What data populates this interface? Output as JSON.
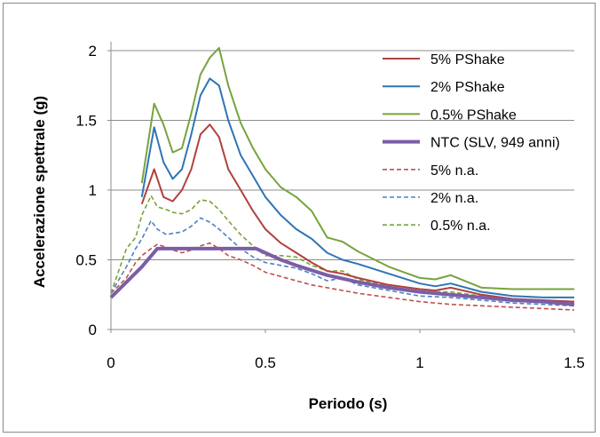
{
  "chart_data": {
    "type": "line",
    "title": "",
    "xlabel": "Periodo (s)",
    "ylabel": "Accelerazione spettrale (g)",
    "xlim": [
      0,
      1.5
    ],
    "ylim": [
      0,
      2
    ],
    "xticks": [
      0,
      0.5,
      1,
      1.5
    ],
    "xtick_labels": [
      "0",
      "0.5",
      "1",
      "1.5"
    ],
    "yticks": [
      0,
      0.5,
      1,
      1.5,
      2
    ],
    "ytick_labels": [
      "0",
      "0.5",
      "1",
      "1.5",
      "2"
    ],
    "grid": "horizontal",
    "legend_position": "right",
    "series": [
      {
        "name": "5% PShake",
        "color": "#b0413e",
        "style": "solid",
        "width": 2,
        "x": [
          0.1,
          0.14,
          0.17,
          0.2,
          0.23,
          0.26,
          0.29,
          0.32,
          0.35,
          0.38,
          0.42,
          0.46,
          0.5,
          0.55,
          0.6,
          0.65,
          0.7,
          0.75,
          0.8,
          0.9,
          1.0,
          1.05,
          1.1,
          1.2,
          1.3,
          1.4,
          1.5
        ],
        "y": [
          0.9,
          1.15,
          0.95,
          0.92,
          1.0,
          1.15,
          1.4,
          1.47,
          1.38,
          1.15,
          1.0,
          0.85,
          0.72,
          0.62,
          0.55,
          0.48,
          0.42,
          0.4,
          0.37,
          0.32,
          0.29,
          0.28,
          0.3,
          0.25,
          0.22,
          0.21,
          0.2
        ]
      },
      {
        "name": "2% PShake",
        "color": "#2e75b6",
        "style": "solid",
        "width": 2,
        "x": [
          0.1,
          0.14,
          0.17,
          0.2,
          0.23,
          0.26,
          0.29,
          0.32,
          0.35,
          0.38,
          0.42,
          0.46,
          0.5,
          0.55,
          0.6,
          0.65,
          0.7,
          0.75,
          0.8,
          0.9,
          1.0,
          1.05,
          1.1,
          1.2,
          1.3,
          1.4,
          1.5
        ],
        "y": [
          0.95,
          1.45,
          1.2,
          1.08,
          1.15,
          1.4,
          1.68,
          1.8,
          1.75,
          1.5,
          1.25,
          1.1,
          0.95,
          0.82,
          0.72,
          0.65,
          0.55,
          0.5,
          0.47,
          0.4,
          0.33,
          0.31,
          0.33,
          0.27,
          0.24,
          0.23,
          0.23
        ]
      },
      {
        "name": "0.5% PShake",
        "color": "#77a33e",
        "style": "solid",
        "width": 2,
        "x": [
          0.1,
          0.14,
          0.17,
          0.2,
          0.23,
          0.26,
          0.29,
          0.32,
          0.35,
          0.38,
          0.42,
          0.46,
          0.5,
          0.55,
          0.6,
          0.65,
          0.7,
          0.75,
          0.8,
          0.9,
          1.0,
          1.05,
          1.1,
          1.2,
          1.3,
          1.4,
          1.5
        ],
        "y": [
          1.05,
          1.62,
          1.47,
          1.27,
          1.3,
          1.55,
          1.83,
          1.95,
          2.02,
          1.75,
          1.48,
          1.3,
          1.15,
          1.02,
          0.95,
          0.85,
          0.66,
          0.63,
          0.56,
          0.45,
          0.37,
          0.36,
          0.39,
          0.3,
          0.29,
          0.29,
          0.29
        ]
      },
      {
        "name": "NTC (SLV, 949 anni)",
        "color": "#7b5ea7",
        "style": "solid",
        "width": 4,
        "x": [
          0,
          0.1,
          0.15,
          0.2,
          0.3,
          0.4,
          0.47,
          0.55,
          0.6,
          0.7,
          0.8,
          0.9,
          1.0,
          1.1,
          1.2,
          1.3,
          1.4,
          1.5
        ],
        "y": [
          0.23,
          0.45,
          0.58,
          0.58,
          0.58,
          0.58,
          0.58,
          0.5,
          0.46,
          0.39,
          0.34,
          0.3,
          0.27,
          0.25,
          0.23,
          0.21,
          0.2,
          0.18
        ]
      },
      {
        "name": "5% n.a.",
        "color": "#c0504d",
        "style": "dashed",
        "width": 1.6,
        "x": [
          0,
          0.05,
          0.08,
          0.1,
          0.13,
          0.15,
          0.18,
          0.2,
          0.23,
          0.26,
          0.29,
          0.32,
          0.35,
          0.38,
          0.42,
          0.46,
          0.5,
          0.55,
          0.6,
          0.65,
          0.7,
          0.75,
          0.8,
          0.9,
          1.0,
          1.1,
          1.2,
          1.3,
          1.4,
          1.5
        ],
        "y": [
          0.26,
          0.37,
          0.48,
          0.53,
          0.58,
          0.61,
          0.59,
          0.57,
          0.55,
          0.57,
          0.6,
          0.62,
          0.58,
          0.53,
          0.5,
          0.46,
          0.41,
          0.38,
          0.35,
          0.32,
          0.3,
          0.28,
          0.26,
          0.23,
          0.2,
          0.18,
          0.17,
          0.16,
          0.15,
          0.14
        ]
      },
      {
        "name": "2% n.a.",
        "color": "#4f81bd",
        "style": "dashed",
        "width": 1.6,
        "x": [
          0,
          0.05,
          0.08,
          0.1,
          0.13,
          0.15,
          0.18,
          0.2,
          0.23,
          0.26,
          0.29,
          0.32,
          0.35,
          0.38,
          0.42,
          0.46,
          0.5,
          0.55,
          0.6,
          0.65,
          0.7,
          0.75,
          0.8,
          0.9,
          1.0,
          1.1,
          1.2,
          1.3,
          1.4,
          1.5
        ],
        "y": [
          0.26,
          0.45,
          0.58,
          0.65,
          0.78,
          0.72,
          0.68,
          0.69,
          0.7,
          0.74,
          0.8,
          0.77,
          0.72,
          0.66,
          0.58,
          0.52,
          0.48,
          0.46,
          0.44,
          0.4,
          0.35,
          0.37,
          0.32,
          0.28,
          0.24,
          0.23,
          0.21,
          0.19,
          0.18,
          0.17
        ]
      },
      {
        "name": "0.5% n.a.",
        "color": "#7aa33a",
        "style": "dashed",
        "width": 1.6,
        "x": [
          0,
          0.05,
          0.08,
          0.1,
          0.13,
          0.15,
          0.18,
          0.2,
          0.23,
          0.26,
          0.29,
          0.32,
          0.35,
          0.38,
          0.42,
          0.46,
          0.5,
          0.55,
          0.6,
          0.65,
          0.7,
          0.75,
          0.8,
          0.9,
          1.0,
          1.1,
          1.2,
          1.3,
          1.4,
          1.5
        ],
        "y": [
          0.26,
          0.58,
          0.66,
          0.82,
          0.96,
          0.88,
          0.86,
          0.84,
          0.83,
          0.86,
          0.93,
          0.92,
          0.86,
          0.78,
          0.68,
          0.6,
          0.53,
          0.53,
          0.52,
          0.46,
          0.42,
          0.42,
          0.36,
          0.31,
          0.27,
          0.27,
          0.24,
          0.21,
          0.2,
          0.2
        ]
      }
    ]
  }
}
